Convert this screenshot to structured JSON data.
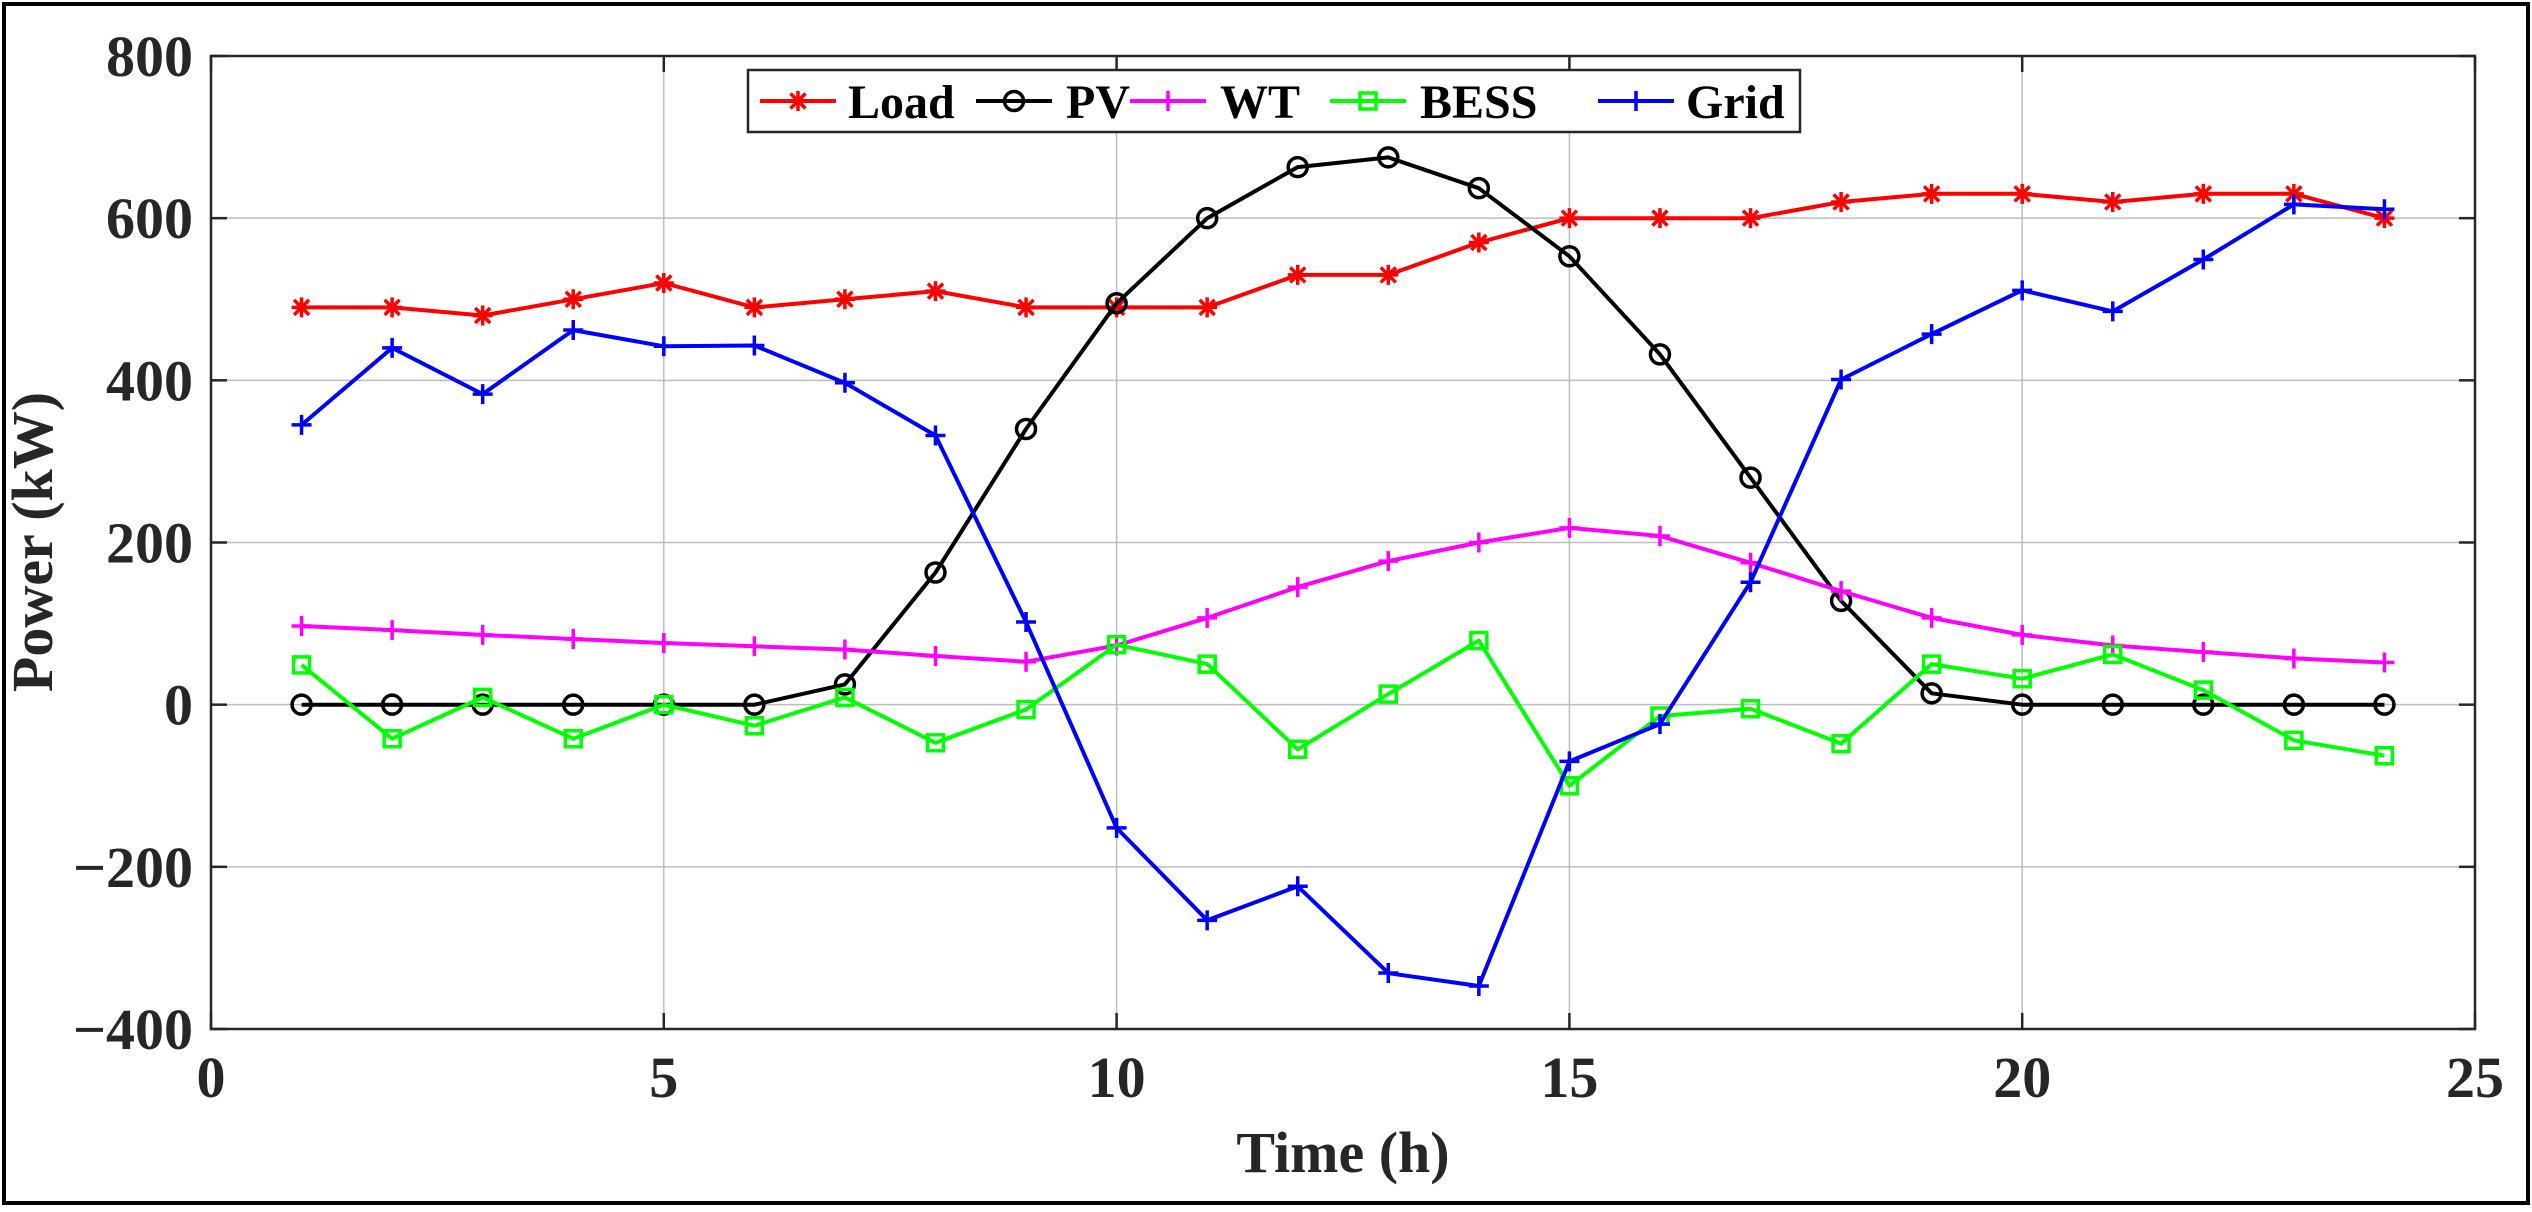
{
  "chart_data": {
    "type": "line",
    "title": "",
    "xlabel": "Time (h)",
    "ylabel": "Power (kW)",
    "xlim": [
      0,
      25
    ],
    "ylim": [
      -400,
      800
    ],
    "xticks": [
      0,
      5,
      10,
      15,
      20,
      25
    ],
    "yticks": [
      -400,
      -200,
      0,
      200,
      400,
      600,
      800
    ],
    "xtick_labels": [
      "0",
      "5",
      "10",
      "15",
      "20",
      "25"
    ],
    "ytick_labels": [
      "−400",
      "−200",
      "0",
      "200",
      "400",
      "600",
      "800"
    ],
    "grid": true,
    "legend_position": "top-center",
    "x": [
      1,
      2,
      3,
      4,
      5,
      6,
      7,
      8,
      9,
      10,
      11,
      12,
      13,
      14,
      15,
      16,
      17,
      18,
      19,
      20,
      21,
      22,
      23,
      24
    ],
    "series": [
      {
        "name": "Load",
        "color": "#ff0000",
        "marker": "asterisk",
        "values": [
          490,
          490,
          480,
          500,
          520,
          490,
          500,
          510,
          490,
          490,
          490,
          530,
          530,
          570,
          600,
          600,
          600,
          620,
          630,
          630,
          620,
          630,
          630,
          600
        ]
      },
      {
        "name": "PV",
        "color": "#000000",
        "marker": "circle",
        "values": [
          0,
          0,
          0,
          0,
          0,
          0,
          25,
          163,
          340,
          495,
          600,
          663,
          675,
          637,
          553,
          432,
          280,
          128,
          14,
          0,
          0,
          0,
          0,
          0
        ]
      },
      {
        "name": "WT",
        "color": "#ff00ff",
        "marker": "plus",
        "values": [
          97,
          92,
          86,
          81,
          76,
          72,
          68,
          60,
          53,
          73,
          107,
          145,
          177,
          200,
          218,
          208,
          175,
          140,
          107,
          86,
          73,
          65,
          57,
          52
        ]
      },
      {
        "name": "BESS",
        "color": "#00ff00",
        "marker": "square",
        "values": [
          49,
          -42,
          9,
          -42,
          0,
          -26,
          9,
          -47,
          -6,
          74,
          50,
          -55,
          13,
          79,
          -100,
          -14,
          -5,
          -48,
          50,
          32,
          62,
          18,
          -44,
          -63
        ]
      },
      {
        "name": "Grid",
        "color": "#0000ff",
        "marker": "plus",
        "values": [
          345,
          440,
          383,
          462,
          442,
          443,
          397,
          332,
          102,
          -152,
          -266,
          -224,
          -331,
          -347,
          -70,
          -24,
          151,
          401,
          457,
          511,
          485,
          549,
          617,
          611
        ]
      }
    ]
  }
}
